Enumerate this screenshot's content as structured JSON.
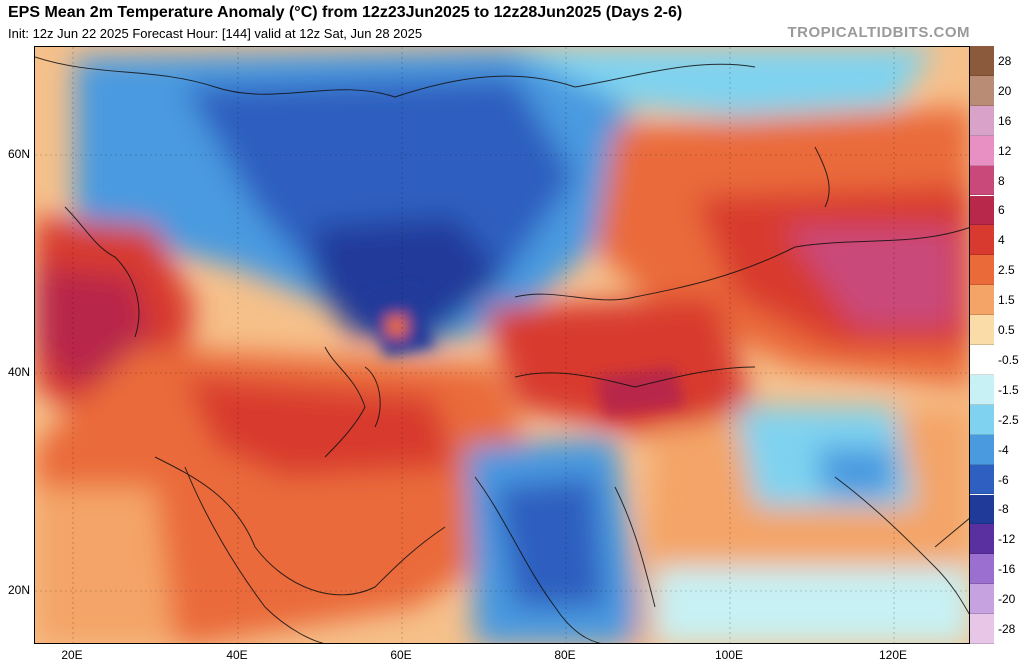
{
  "header": {
    "title": "EPS Mean 2m Temperature Anomaly (°C) from 12z23Jun2025 to 12z28Jun2025 (Days 2-6)",
    "subtitle": "Init: 12z Jun 22 2025   Forecast Hour: [144]   valid at 12z Sat, Jun 28 2025",
    "brand": "TROPICALTIDBITS.COM"
  },
  "map": {
    "lat_labels": [
      "60N",
      "40N",
      "20N"
    ],
    "lon_labels": [
      "20E",
      "40E",
      "60E",
      "80E",
      "100E",
      "120E"
    ],
    "lat_range": [
      15,
      70
    ],
    "lon_range": [
      15,
      130
    ]
  },
  "colorbar": {
    "labels": [
      "28",
      "20",
      "16",
      "12",
      "8",
      "6",
      "4",
      "2.5",
      "1.5",
      "0.5",
      "-0.5",
      "-1.5",
      "-2.5",
      "-4",
      "-6",
      "-8",
      "-12",
      "-16",
      "-20",
      "-28"
    ],
    "colors": [
      "#8b5a3c",
      "#b98c76",
      "#d9a3c9",
      "#e88fc4",
      "#c94a7a",
      "#b8284a",
      "#d83a2f",
      "#ea6a3a",
      "#f4a467",
      "#f9dca8",
      "#ffffff",
      "#c7f1f4",
      "#7fd3f0",
      "#4a9ae0",
      "#2f5fc0",
      "#203a9a",
      "#5a2fa0",
      "#9b6fcf",
      "#c6a2e0",
      "#e8c6e8"
    ]
  },
  "colors": {
    "warm": "#d83a2f",
    "cold": "#2f5fc0",
    "neutral": "#ffffff"
  }
}
